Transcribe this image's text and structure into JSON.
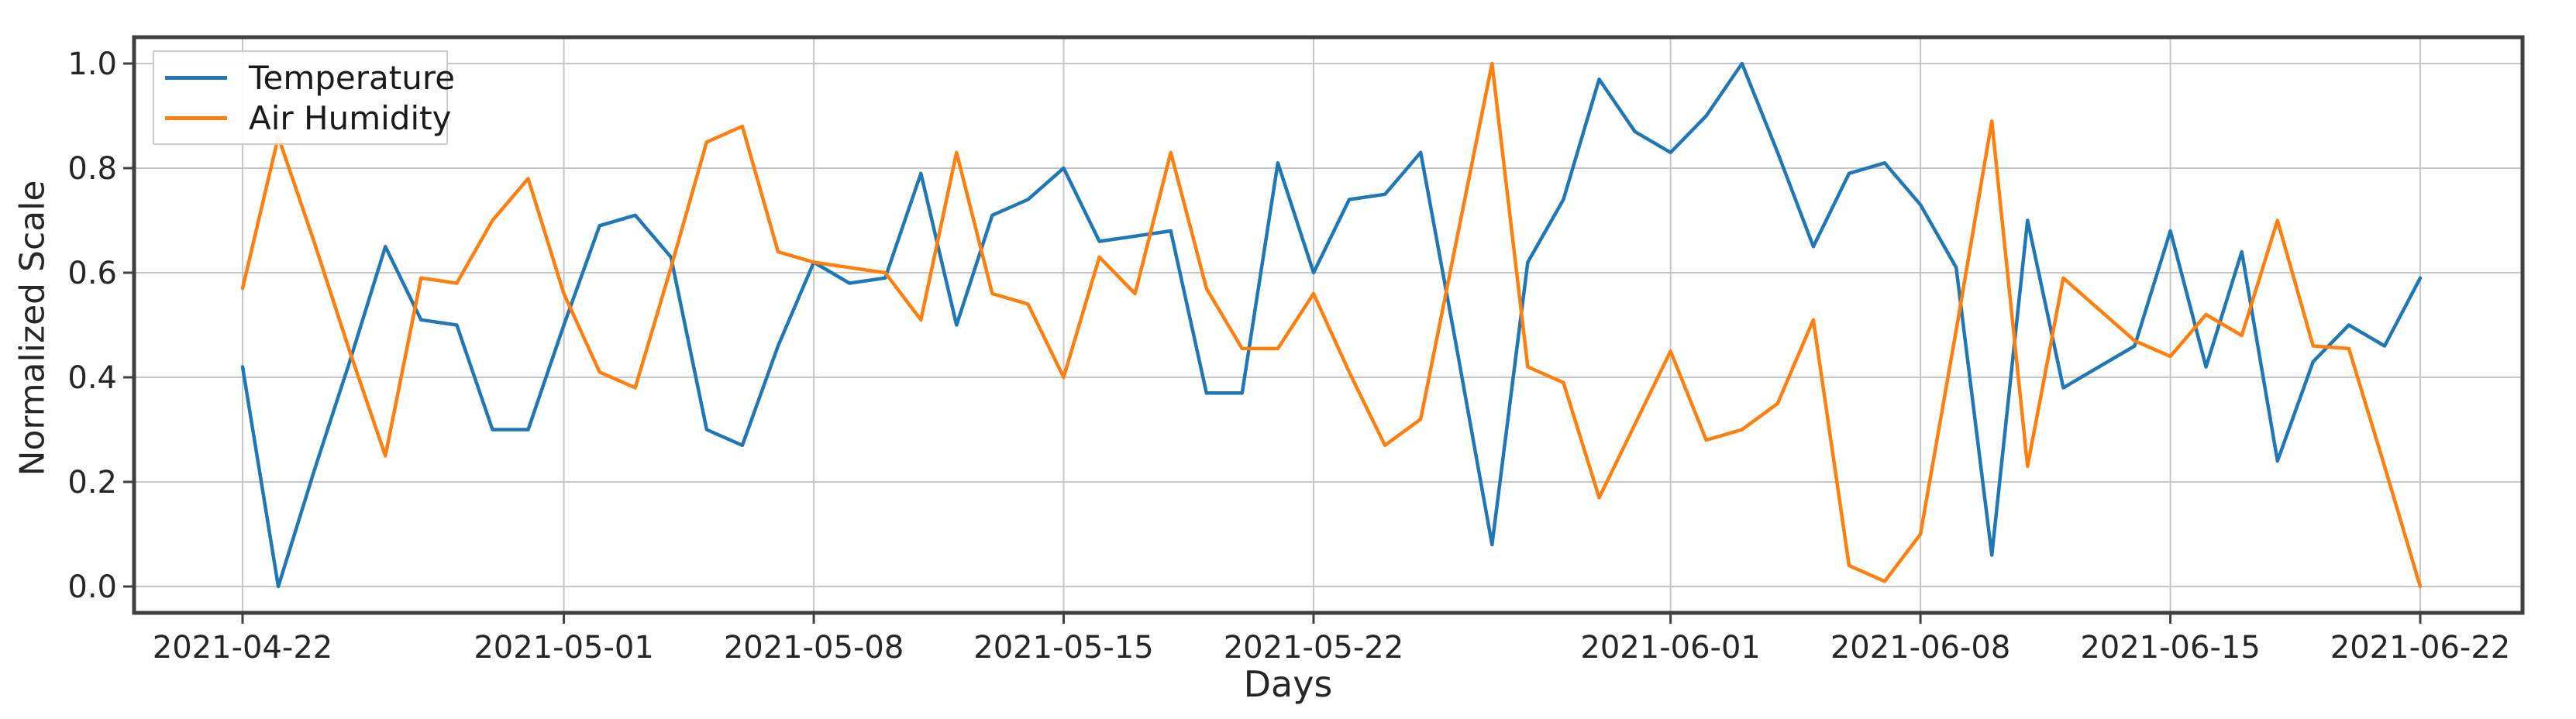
{
  "chart_data": {
    "type": "line",
    "title": "",
    "xlabel": "Days",
    "ylabel": "Normalized Scale",
    "grid": true,
    "ylim": [
      -0.05,
      1.05
    ],
    "y_ticks": [
      0.0,
      0.2,
      0.4,
      0.6,
      0.8,
      1.0
    ],
    "y_tick_labels": [
      "0.0",
      "0.2",
      "0.4",
      "0.6",
      "0.8",
      "1.0"
    ],
    "x_tick_labels": [
      "2021-04-22",
      "2021-05-01",
      "2021-05-08",
      "2021-05-15",
      "2021-05-22",
      "2021-06-01",
      "2021-06-08",
      "2021-06-15",
      "2021-06-22"
    ],
    "legend": {
      "position": "upper left",
      "entries": [
        "Temperature",
        "Air Humidity"
      ]
    },
    "x": [
      "2021-04-22",
      "2021-04-23",
      "2021-04-24",
      "2021-04-25",
      "2021-04-26",
      "2021-04-27",
      "2021-04-28",
      "2021-04-29",
      "2021-04-30",
      "2021-05-01",
      "2021-05-02",
      "2021-05-03",
      "2021-05-04",
      "2021-05-05",
      "2021-05-06",
      "2021-05-07",
      "2021-05-08",
      "2021-05-09",
      "2021-05-10",
      "2021-05-11",
      "2021-05-12",
      "2021-05-13",
      "2021-05-14",
      "2021-05-15",
      "2021-05-16",
      "2021-05-17",
      "2021-05-18",
      "2021-05-19",
      "2021-05-20",
      "2021-05-21",
      "2021-05-22",
      "2021-05-23",
      "2021-05-24",
      "2021-05-25",
      "2021-05-26",
      "2021-05-27",
      "2021-05-28",
      "2021-05-29",
      "2021-05-30",
      "2021-05-31",
      "2021-06-01",
      "2021-06-02",
      "2021-06-03",
      "2021-06-04",
      "2021-06-05",
      "2021-06-06",
      "2021-06-07",
      "2021-06-08",
      "2021-06-09",
      "2021-06-10",
      "2021-06-11",
      "2021-06-12",
      "2021-06-13",
      "2021-06-14",
      "2021-06-15",
      "2021-06-16",
      "2021-06-17",
      "2021-06-18",
      "2021-06-19",
      "2021-06-20",
      "2021-06-21",
      "2021-06-22"
    ],
    "series": [
      {
        "name": "Temperature",
        "color": "#1f77b4",
        "values": [
          0.42,
          0.0,
          0.22,
          0.43,
          0.65,
          0.51,
          0.5,
          0.3,
          0.3,
          0.5,
          0.69,
          0.71,
          0.63,
          0.3,
          0.27,
          0.46,
          0.62,
          0.58,
          0.59,
          0.79,
          0.5,
          0.71,
          0.74,
          0.8,
          0.66,
          0.67,
          0.68,
          0.37,
          0.37,
          0.81,
          0.6,
          0.74,
          0.75,
          0.83,
          0.46,
          0.08,
          0.62,
          0.74,
          0.97,
          0.87,
          0.83,
          0.9,
          1.0,
          0.83,
          0.65,
          0.79,
          0.81,
          0.73,
          0.61,
          0.06,
          0.7,
          0.38,
          0.42,
          0.46,
          0.68,
          0.42,
          0.64,
          0.24,
          0.43,
          0.5,
          0.46,
          0.59
        ]
      },
      {
        "name": "Air Humidity",
        "color": "#ff7f0e",
        "values": [
          0.57,
          0.86,
          0.66,
          0.45,
          0.25,
          0.59,
          0.58,
          0.7,
          0.78,
          0.56,
          0.41,
          0.38,
          0.61,
          0.85,
          0.88,
          0.64,
          0.62,
          0.61,
          0.6,
          0.51,
          0.83,
          0.56,
          0.54,
          0.4,
          0.63,
          0.56,
          0.83,
          0.57,
          0.455,
          0.455,
          0.56,
          0.41,
          0.27,
          0.32,
          0.66,
          1.0,
          0.42,
          0.39,
          0.17,
          0.31,
          0.45,
          0.28,
          0.3,
          0.35,
          0.51,
          0.04,
          0.01,
          0.1,
          0.49,
          0.89,
          0.23,
          0.59,
          0.53,
          0.47,
          0.44,
          0.52,
          0.48,
          0.7,
          0.46,
          0.455,
          0.23,
          0.0
        ]
      }
    ]
  },
  "colors": {
    "background": "#ffffff",
    "grid": "#c6c6c6",
    "spine": "#3f3f3f",
    "tick_label": "#262626",
    "legend_border": "#cccccc"
  }
}
